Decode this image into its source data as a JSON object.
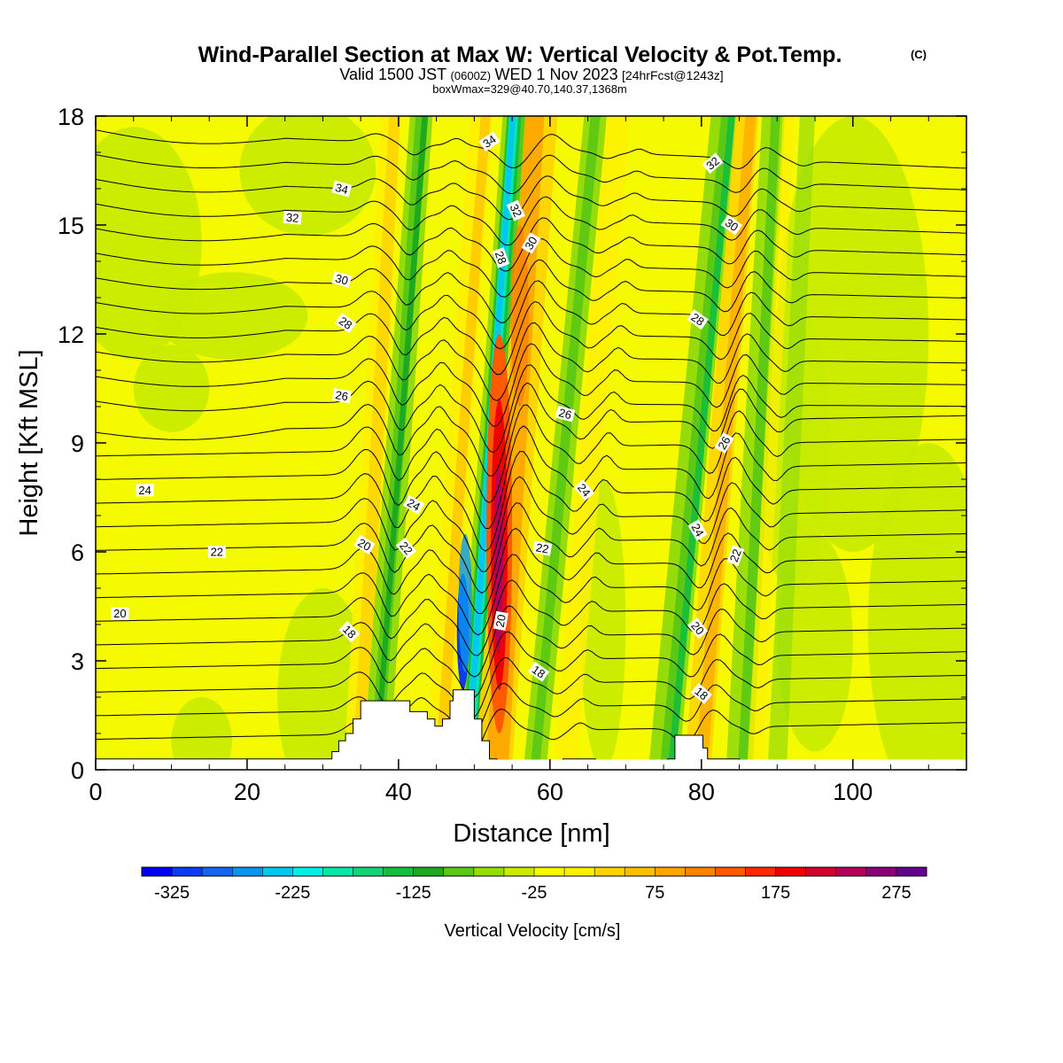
{
  "chart_data": {
    "type": "heatmap",
    "title": "Wind-Parallel Section at Max W: Vertical Velocity & Pot.Temp.",
    "title_mark": "(C)",
    "subtitle_parts": [
      "Valid 1500 JST",
      "(0600Z)",
      "WED 1 Nov 2023",
      "[24hrFcst@1243z]"
    ],
    "subtitle2": "boxWmax=329@40.70,140.37,1368m",
    "xlabel": "Distance [nm]",
    "ylabel": "Height [Kft MSL]",
    "xlim": [
      0,
      115
    ],
    "ylim": [
      0,
      18
    ],
    "x_ticks": [
      "0",
      "20",
      "40",
      "60",
      "80",
      "100"
    ],
    "y_ticks": [
      "0",
      "3",
      "6",
      "9",
      "12",
      "15",
      "18"
    ],
    "x_tick_values": [
      0,
      20,
      40,
      60,
      80,
      100
    ],
    "y_tick_values": [
      0,
      3,
      6,
      9,
      12,
      15,
      18
    ],
    "colorbar": {
      "label": "Vertical Velocity [cm/s]",
      "min": -350,
      "step": 25,
      "tick_labels": [
        "-325",
        "-225",
        "-125",
        "-25",
        "75",
        "175",
        "275"
      ],
      "tick_values": [
        -325,
        -225,
        -125,
        -25,
        75,
        175,
        275
      ],
      "colors": [
        "#0000f0",
        "#0a3cf0",
        "#1465f0",
        "#0a96f0",
        "#00c8f0",
        "#00f0e6",
        "#0ae6a5",
        "#14d278",
        "#14be3c",
        "#1eaa1e",
        "#5ac814",
        "#96dc0a",
        "#c8eb00",
        "#f5fa00",
        "#fff000",
        "#ffd200",
        "#ffbe00",
        "#ffa500",
        "#ff8200",
        "#ff5a00",
        "#ff2800",
        "#f00000",
        "#d2002d",
        "#b4005a",
        "#8c0078",
        "#64008c"
      ]
    },
    "contour_labels": [
      {
        "text": "34",
        "x": 52,
        "y": 17.3,
        "rot": -35
      },
      {
        "text": "34",
        "x": 32.5,
        "y": 16.0,
        "rot": 15
      },
      {
        "text": "32",
        "x": 26,
        "y": 15.2,
        "rot": 5
      },
      {
        "text": "32",
        "x": 81.5,
        "y": 16.7,
        "rot": -40
      },
      {
        "text": "32",
        "x": 55.5,
        "y": 15.4,
        "rot": 65
      },
      {
        "text": "30",
        "x": 32.5,
        "y": 13.5,
        "rot": 15
      },
      {
        "text": "30",
        "x": 57.5,
        "y": 14.5,
        "rot": -60
      },
      {
        "text": "30",
        "x": 84,
        "y": 15.0,
        "rot": 35
      },
      {
        "text": "28",
        "x": 53.5,
        "y": 14.1,
        "rot": 70
      },
      {
        "text": "28",
        "x": 33,
        "y": 12.3,
        "rot": 35
      },
      {
        "text": "28",
        "x": 79.5,
        "y": 12.4,
        "rot": 35
      },
      {
        "text": "26",
        "x": 32.5,
        "y": 10.3,
        "rot": 10
      },
      {
        "text": "26",
        "x": 62,
        "y": 9.8,
        "rot": 15
      },
      {
        "text": "26",
        "x": 83,
        "y": 9.0,
        "rot": -60
      },
      {
        "text": "24",
        "x": 6.5,
        "y": 7.7,
        "rot": 0
      },
      {
        "text": "24",
        "x": 42,
        "y": 7.3,
        "rot": 30
      },
      {
        "text": "24",
        "x": 64.5,
        "y": 7.7,
        "rot": 50
      },
      {
        "text": "24",
        "x": 79.5,
        "y": 6.6,
        "rot": 60
      },
      {
        "text": "22",
        "x": 16,
        "y": 6.0,
        "rot": 0
      },
      {
        "text": "22",
        "x": 41,
        "y": 6.1,
        "rot": 50
      },
      {
        "text": "22",
        "x": 59,
        "y": 6.1,
        "rot": 10
      },
      {
        "text": "22",
        "x": 84.5,
        "y": 5.9,
        "rot": -70
      },
      {
        "text": "20",
        "x": 3.2,
        "y": 4.3,
        "rot": 0
      },
      {
        "text": "20",
        "x": 35.5,
        "y": 6.2,
        "rot": 30
      },
      {
        "text": "20",
        "x": 53.5,
        "y": 4.1,
        "rot": -80
      },
      {
        "text": "20",
        "x": 79.5,
        "y": 3.9,
        "rot": 50
      },
      {
        "text": "18",
        "x": 33.5,
        "y": 3.8,
        "rot": 45
      },
      {
        "text": "18",
        "x": 58.5,
        "y": 2.7,
        "rot": 35
      },
      {
        "text": "18",
        "x": 80,
        "y": 2.1,
        "rot": 40
      }
    ]
  }
}
